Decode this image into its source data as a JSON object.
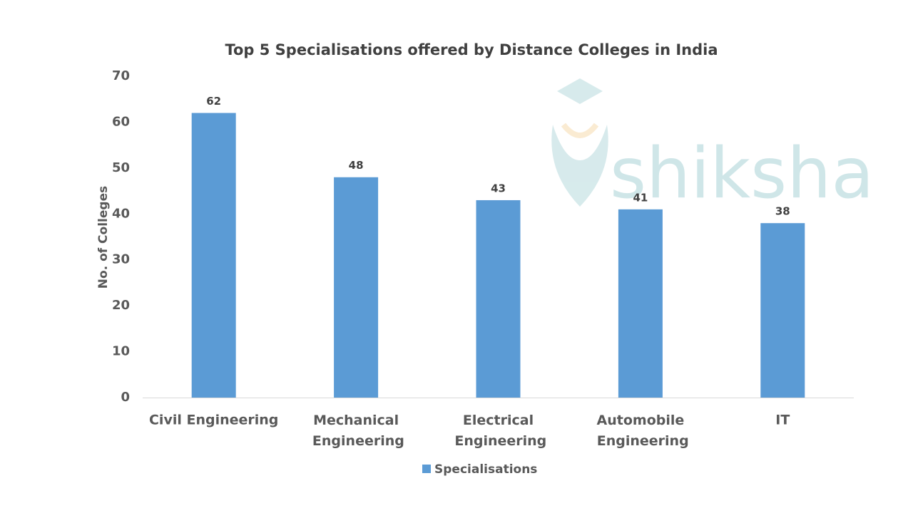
{
  "chart_data": {
    "type": "bar",
    "title": "Top 5 Specialisations offered by Distance Colleges in India",
    "y_label": "No. of Colleges",
    "categories": [
      "Civil Engineering",
      "Mechanical Engineering",
      "Electrical Engineering",
      "Automobile Engineering",
      "IT"
    ],
    "series": [
      {
        "name": "Specialisations",
        "color": "#5b9bd5",
        "values": [
          62,
          48,
          43,
          41,
          38
        ]
      }
    ],
    "ylim": [
      0,
      70
    ],
    "yticks": [
      0,
      10,
      20,
      30,
      40,
      50,
      60,
      70
    ],
    "grid": false,
    "legend": "bottom",
    "watermark": "shiksha"
  }
}
